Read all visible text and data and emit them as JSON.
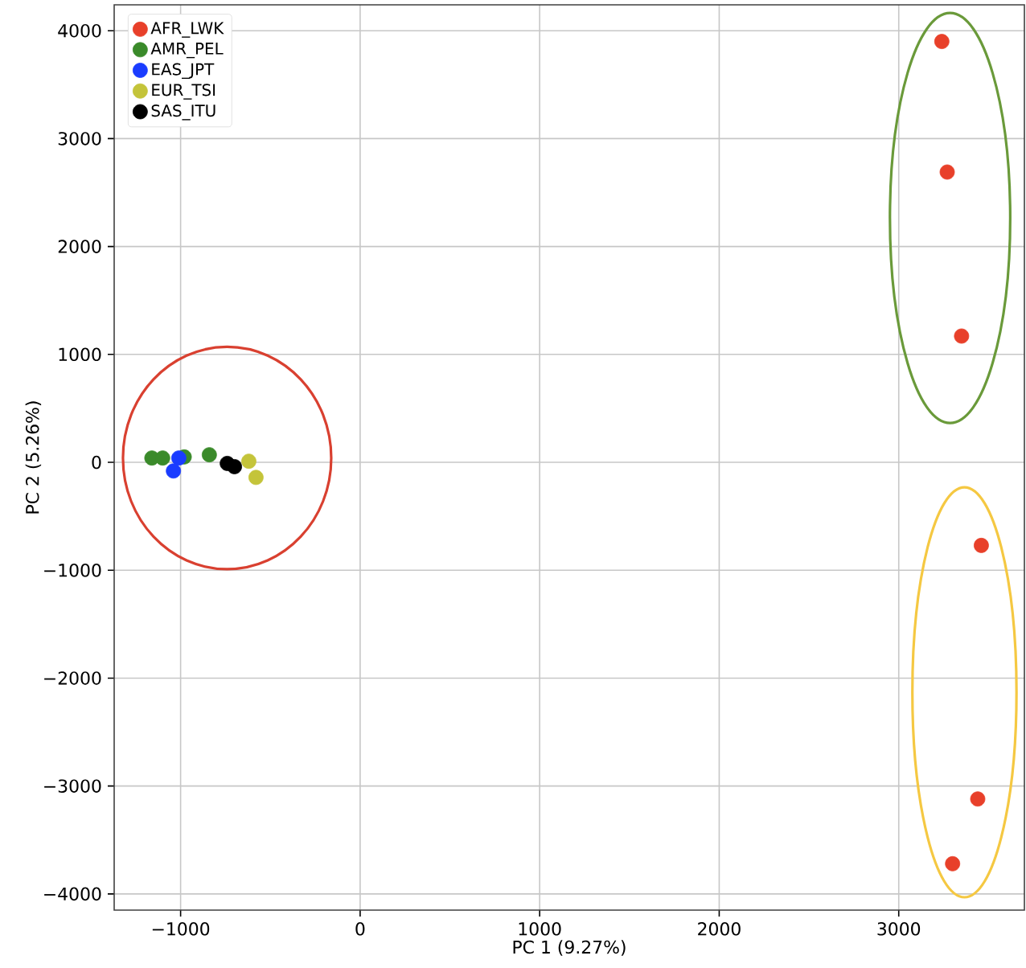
{
  "chart_data": {
    "type": "scatter",
    "xlabel": "PC 1 (9.27%)",
    "ylabel": "PC 2 (5.26%)",
    "xlim": [
      -1370,
      3700
    ],
    "ylim": [
      -4150,
      4240
    ],
    "xticks": [
      {
        "value": -1000,
        "label": "−1000"
      },
      0,
      1000,
      2000,
      3000
    ],
    "yticks": [
      {
        "value": -4000,
        "label": "−4000"
      },
      {
        "value": -3000,
        "label": "−3000"
      },
      {
        "value": -2000,
        "label": "−2000"
      },
      {
        "value": -1000,
        "label": "−1000"
      },
      0,
      1000,
      2000,
      3000,
      4000
    ],
    "grid": true,
    "legend": "top left",
    "marker": "circle",
    "series": [
      {
        "name": "AFR_LWK",
        "color": "#e8402a",
        "x": [
          3240,
          3270,
          3350,
          3460,
          3440,
          3300
        ],
        "values": [
          3900,
          2690,
          1170,
          -770,
          -3120,
          -3720
        ]
      },
      {
        "name": "AMR_PEL",
        "color": "#3a8a2a",
        "x": [
          -1160,
          -1100,
          -980,
          -840
        ],
        "values": [
          40,
          40,
          50,
          70
        ]
      },
      {
        "name": "EAS_JPT",
        "color": "#1a3cff",
        "x": [
          -1010,
          -1040
        ],
        "values": [
          40,
          -80
        ]
      },
      {
        "name": "EUR_TSI",
        "color": "#c4c43a",
        "x": [
          -620,
          -580
        ],
        "values": [
          10,
          -140
        ]
      },
      {
        "name": "SAS_ITU",
        "color": "#000000",
        "x": [
          -740,
          -700
        ],
        "values": [
          -10,
          -40
        ]
      }
    ]
  }
}
